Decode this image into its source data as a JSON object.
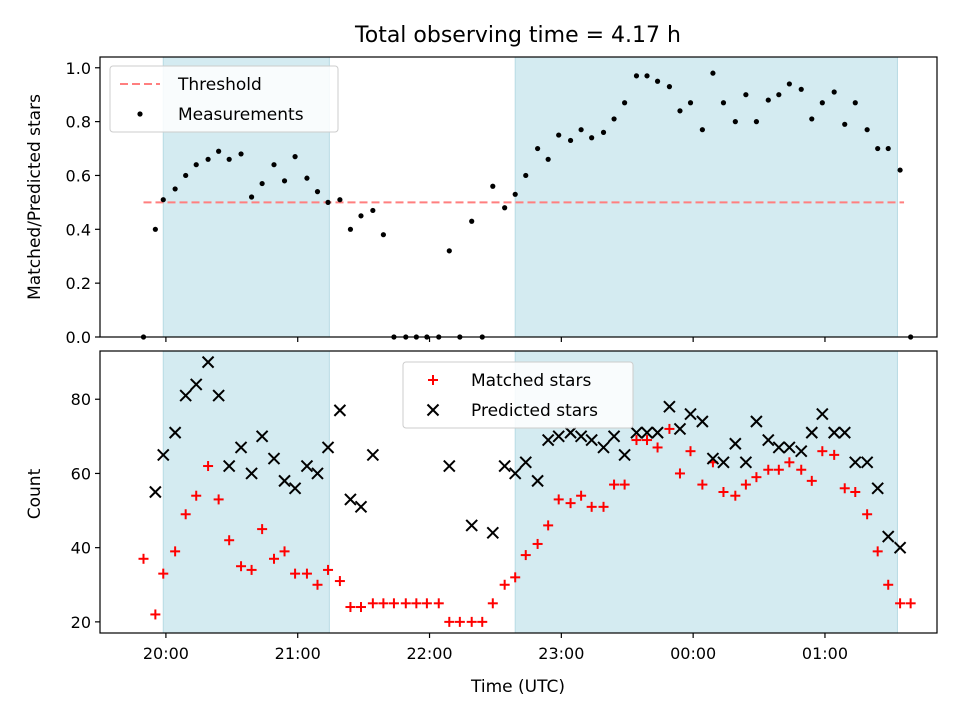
{
  "chart_data": [
    {
      "type": "scatter",
      "title": "Total observing time = 4.17 h",
      "xlabel": "",
      "ylabel": "Matched/Predicted stars",
      "xlim_hours": [
        19.5,
        25.85
      ],
      "ylim": [
        0,
        1.04
      ],
      "yticks": [
        0.0,
        0.2,
        0.4,
        0.6,
        0.8,
        1.0
      ],
      "ytick_labels": [
        "0.0",
        "0.2",
        "0.4",
        "0.6",
        "0.8",
        "1.0"
      ],
      "shaded_intervals_hours": [
        [
          19.98,
          21.24
        ],
        [
          22.65,
          25.55
        ]
      ],
      "threshold": {
        "name": "Threshold",
        "y": 0.5,
        "x_range_hours": [
          19.83,
          25.6
        ],
        "color": "#ff7f7f"
      },
      "legend": [
        "Threshold",
        "Measurements"
      ],
      "legend_position": "upper left",
      "series": [
        {
          "name": "Measurements",
          "color": "#000000",
          "marker": "dot",
          "x_hours": [
            19.83,
            19.92,
            19.98,
            20.07,
            20.15,
            20.23,
            20.32,
            20.4,
            20.48,
            20.57,
            20.65,
            20.73,
            20.82,
            20.9,
            20.98,
            21.07,
            21.15,
            21.23,
            21.32,
            21.4,
            21.48,
            21.57,
            21.65,
            21.73,
            21.82,
            21.9,
            21.98,
            22.07,
            22.15,
            22.23,
            22.32,
            22.4,
            22.48,
            22.57,
            22.65,
            22.73,
            22.82,
            22.9,
            22.98,
            23.07,
            23.15,
            23.23,
            23.32,
            23.4,
            23.48,
            23.57,
            23.65,
            23.73,
            23.82,
            23.9,
            23.98,
            24.07,
            24.15,
            24.23,
            24.32,
            24.4,
            24.48,
            24.57,
            24.65,
            24.73,
            24.82,
            24.9,
            24.98,
            25.07,
            25.15,
            25.23,
            25.32,
            25.4,
            25.48,
            25.57,
            25.65
          ],
          "values": [
            0.0,
            0.4,
            0.51,
            0.55,
            0.6,
            0.64,
            0.66,
            0.69,
            0.66,
            0.68,
            0.52,
            0.57,
            0.64,
            0.58,
            0.67,
            0.59,
            0.54,
            0.5,
            0.51,
            0.4,
            0.45,
            0.47,
            0.38,
            0.0,
            0.0,
            0.0,
            0.0,
            0.0,
            0.32,
            0.0,
            0.43,
            0.0,
            0.56,
            0.48,
            0.53,
            0.6,
            0.7,
            0.66,
            0.75,
            0.73,
            0.77,
            0.74,
            0.76,
            0.81,
            0.87,
            0.97,
            0.97,
            0.95,
            0.93,
            0.84,
            0.87,
            0.77,
            0.98,
            0.87,
            0.8,
            0.9,
            0.8,
            0.88,
            0.9,
            0.94,
            0.92,
            0.81,
            0.87,
            0.91,
            0.79,
            0.87,
            0.77,
            0.7,
            0.7,
            0.62,
            0.0
          ]
        }
      ]
    },
    {
      "type": "scatter",
      "title": "",
      "xlabel": "Time (UTC)",
      "ylabel": "Count",
      "xlim_hours": [
        19.5,
        25.85
      ],
      "ylim": [
        17,
        93
      ],
      "yticks": [
        20,
        40,
        60,
        80
      ],
      "ytick_labels": [
        "20",
        "40",
        "60",
        "80"
      ],
      "xticks_hours": [
        20,
        21,
        22,
        23,
        24,
        25
      ],
      "xtick_labels": [
        "20:00",
        "21:00",
        "22:00",
        "23:00",
        "00:00",
        "01:00"
      ],
      "shaded_intervals_hours": [
        [
          19.98,
          21.24
        ],
        [
          22.65,
          25.55
        ]
      ],
      "legend": [
        "Matched stars",
        "Predicted stars"
      ],
      "legend_position": "upper center",
      "series": [
        {
          "name": "Matched stars",
          "color": "#ff0000",
          "marker": "plus",
          "x_hours": [
            19.83,
            19.92,
            19.98,
            20.07,
            20.15,
            20.23,
            20.32,
            20.4,
            20.48,
            20.57,
            20.65,
            20.73,
            20.82,
            20.9,
            20.98,
            21.07,
            21.15,
            21.23,
            21.32,
            21.4,
            21.48,
            21.57,
            21.65,
            21.73,
            21.82,
            21.9,
            21.98,
            22.07,
            22.15,
            22.23,
            22.32,
            22.4,
            22.48,
            22.57,
            22.65,
            22.73,
            22.82,
            22.9,
            22.98,
            23.07,
            23.15,
            23.23,
            23.32,
            23.4,
            23.48,
            23.57,
            23.65,
            23.73,
            23.82,
            23.9,
            23.98,
            24.07,
            24.15,
            24.23,
            24.32,
            24.4,
            24.48,
            24.57,
            24.65,
            24.73,
            24.82,
            24.9,
            24.98,
            25.07,
            25.15,
            25.23,
            25.32,
            25.4,
            25.48,
            25.57,
            25.65
          ],
          "values": [
            37,
            22,
            33,
            39,
            49,
            54,
            62,
            53,
            42,
            35,
            34,
            45,
            37,
            39,
            33,
            33,
            30,
            34,
            31,
            24,
            24,
            25,
            25,
            25,
            25,
            25,
            25,
            25,
            20,
            20,
            20,
            20,
            25,
            30,
            32,
            38,
            41,
            46,
            53,
            52,
            54,
            51,
            51,
            57,
            57,
            69,
            69,
            67,
            72,
            60,
            66,
            57,
            63,
            55,
            54,
            57,
            59,
            61,
            61,
            63,
            61,
            58,
            66,
            65,
            56,
            55,
            49,
            39,
            30,
            25,
            25
          ]
        },
        {
          "name": "Predicted stars",
          "color": "#000000",
          "marker": "x",
          "x_hours": [
            19.92,
            19.98,
            20.07,
            20.15,
            20.23,
            20.32,
            20.4,
            20.48,
            20.57,
            20.65,
            20.73,
            20.82,
            20.9,
            20.98,
            21.07,
            21.15,
            21.23,
            21.32,
            21.4,
            21.48,
            21.57,
            22.15,
            22.32,
            22.48,
            22.57,
            22.65,
            22.73,
            22.82,
            22.9,
            22.98,
            23.07,
            23.15,
            23.23,
            23.32,
            23.4,
            23.48,
            23.57,
            23.65,
            23.73,
            23.82,
            23.9,
            23.98,
            24.07,
            24.15,
            24.23,
            24.32,
            24.4,
            24.48,
            24.57,
            24.65,
            24.73,
            24.82,
            24.9,
            24.98,
            25.07,
            25.15,
            25.23,
            25.32,
            25.4,
            25.48,
            25.57
          ],
          "values": [
            55,
            65,
            71,
            81,
            84,
            90,
            81,
            62,
            67,
            60,
            70,
            64,
            58,
            56,
            62,
            60,
            67,
            77,
            53,
            51,
            65,
            62,
            46,
            44,
            62,
            60,
            63,
            58,
            69,
            70,
            71,
            70,
            69,
            67,
            70,
            65,
            71,
            71,
            71,
            78,
            72,
            76,
            74,
            64,
            63,
            68,
            63,
            74,
            69,
            67,
            67,
            66,
            71,
            76,
            71,
            71,
            63,
            63,
            56,
            43,
            40
          ]
        }
      ]
    }
  ]
}
